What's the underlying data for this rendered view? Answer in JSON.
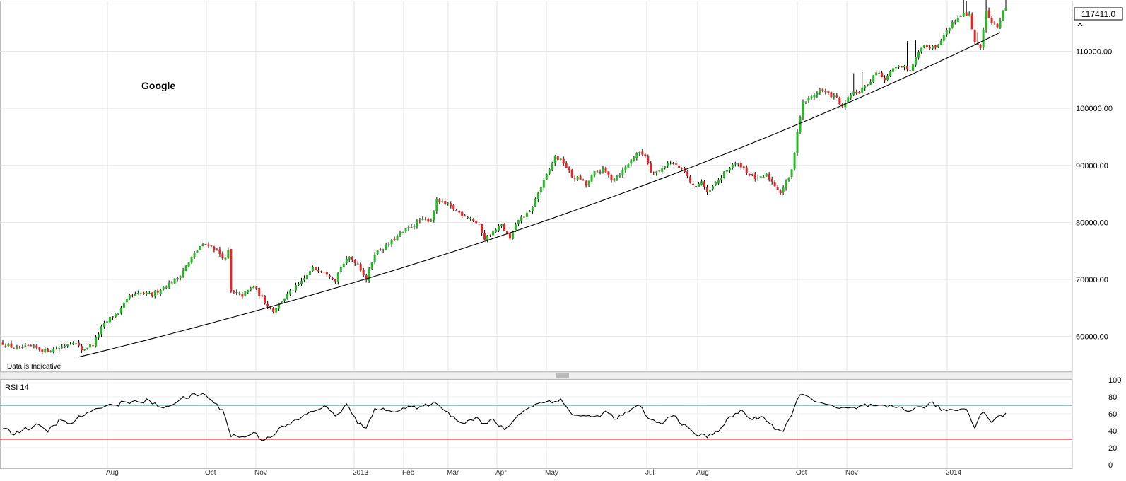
{
  "chart_data": [
    {
      "type": "candlestick",
      "title": "Google",
      "watermark": "Data is Indicative",
      "last_price_label": "117411.0",
      "y_ticks": [
        60000,
        70000,
        80000,
        90000,
        100000,
        110000
      ],
      "y_tick_labels": [
        "60000.00",
        "70000.00",
        "80000.00",
        "90000.00",
        "100000.00",
        "110000.00"
      ],
      "ylim": [
        54000,
        118500
      ],
      "x_ticks": [
        "Aug",
        "Oct",
        "Nov",
        "2013",
        "Feb",
        "Mar",
        "Apr",
        "May",
        "Jul",
        "Aug",
        "Oct",
        "Nov",
        "2014"
      ],
      "price_anchors": [
        [
          0,
          58800
        ],
        [
          5,
          57800
        ],
        [
          10,
          58200
        ],
        [
          15,
          57500
        ],
        [
          20,
          58000
        ],
        [
          25,
          59200
        ],
        [
          28,
          57700
        ],
        [
          32,
          58600
        ],
        [
          35,
          61500
        ],
        [
          38,
          63200
        ],
        [
          41,
          64200
        ],
        [
          45,
          67000
        ],
        [
          49,
          67500
        ],
        [
          53,
          67300
        ],
        [
          58,
          69000
        ],
        [
          62,
          70200
        ],
        [
          66,
          73000
        ],
        [
          70,
          75800
        ],
        [
          73,
          76200
        ],
        [
          76,
          75000
        ],
        [
          79,
          73500
        ],
        [
          80,
          75000
        ],
        [
          81,
          67700
        ],
        [
          85,
          67200
        ],
        [
          89,
          68800
        ],
        [
          93,
          66000
        ],
        [
          96,
          64500
        ],
        [
          99,
          66300
        ],
        [
          102,
          67800
        ],
        [
          106,
          69500
        ],
        [
          110,
          72000
        ],
        [
          114,
          71500
        ],
        [
          118,
          70000
        ],
        [
          120,
          72300
        ],
        [
          123,
          73800
        ],
        [
          126,
          72800
        ],
        [
          129,
          70000
        ],
        [
          132,
          74700
        ],
        [
          136,
          75800
        ],
        [
          140,
          77500
        ],
        [
          144,
          79000
        ],
        [
          148,
          80300
        ],
        [
          152,
          80500
        ],
        [
          154,
          83800
        ],
        [
          158,
          83000
        ],
        [
          162,
          81700
        ],
        [
          166,
          80800
        ],
        [
          169,
          79400
        ],
        [
          171,
          77200
        ],
        [
          174,
          78300
        ],
        [
          177,
          79500
        ],
        [
          180,
          77000
        ],
        [
          183,
          80500
        ],
        [
          187,
          81700
        ],
        [
          190,
          85200
        ],
        [
          193,
          88200
        ],
        [
          196,
          91500
        ],
        [
          199,
          90500
        ],
        [
          202,
          88000
        ],
        [
          205,
          87600
        ],
        [
          207,
          86500
        ],
        [
          210,
          88700
        ],
        [
          213,
          89300
        ],
        [
          216,
          87600
        ],
        [
          219,
          88500
        ],
        [
          222,
          90300
        ],
        [
          225,
          92200
        ],
        [
          228,
          91800
        ],
        [
          230,
          89000
        ],
        [
          233,
          88900
        ],
        [
          236,
          90600
        ],
        [
          239,
          90000
        ],
        [
          242,
          88800
        ],
        [
          245,
          86200
        ],
        [
          248,
          87200
        ],
        [
          250,
          85000
        ],
        [
          253,
          86800
        ],
        [
          256,
          88600
        ],
        [
          259,
          90200
        ],
        [
          262,
          90000
        ],
        [
          265,
          88400
        ],
        [
          268,
          87500
        ],
        [
          271,
          88300
        ],
        [
          274,
          86500
        ],
        [
          276,
          85300
        ],
        [
          278,
          87000
        ],
        [
          280,
          89000
        ],
        [
          282,
          96000
        ],
        [
          284,
          101000
        ],
        [
          287,
          102000
        ],
        [
          290,
          103200
        ],
        [
          293,
          102500
        ],
        [
          296,
          101800
        ],
        [
          298,
          100000
        ],
        [
          301,
          102500
        ],
        [
          304,
          103000
        ],
        [
          307,
          104000
        ],
        [
          310,
          106500
        ],
        [
          313,
          105000
        ],
        [
          316,
          106800
        ],
        [
          319,
          107500
        ],
        [
          322,
          106800
        ],
        [
          325,
          110200
        ],
        [
          328,
          111000
        ],
        [
          331,
          110500
        ],
        [
          334,
          112800
        ],
        [
          337,
          115000
        ],
        [
          340,
          116400
        ],
        [
          343,
          116500
        ],
        [
          345,
          111500
        ],
        [
          347,
          110500
        ],
        [
          349,
          117000
        ],
        [
          351,
          115000
        ],
        [
          353,
          114500
        ],
        [
          355,
          116800
        ],
        [
          356,
          117411
        ]
      ],
      "trendline": {
        "start": [
          27,
          56400
        ],
        "end": [
          354,
          113300
        ],
        "curve": "exponential"
      }
    },
    {
      "type": "line",
      "label": "RSI 14",
      "ylim": [
        0,
        100
      ],
      "y_ticks": [
        0,
        20,
        40,
        60,
        80,
        100
      ],
      "y_tick_labels": [
        "0",
        "20",
        "40",
        "60",
        "80",
        "100"
      ],
      "reference_lines": [
        {
          "value": 70,
          "color": "#4a9b9a"
        },
        {
          "value": 30,
          "color": "#e03030"
        }
      ],
      "anchors": [
        [
          0,
          44
        ],
        [
          4,
          37
        ],
        [
          8,
          42
        ],
        [
          12,
          46
        ],
        [
          16,
          40
        ],
        [
          20,
          52
        ],
        [
          24,
          48
        ],
        [
          28,
          58
        ],
        [
          32,
          62
        ],
        [
          36,
          71
        ],
        [
          40,
          70
        ],
        [
          44,
          75
        ],
        [
          48,
          73
        ],
        [
          52,
          76
        ],
        [
          56,
          66
        ],
        [
          60,
          72
        ],
        [
          64,
          78
        ],
        [
          68,
          82
        ],
        [
          72,
          83
        ],
        [
          75,
          72
        ],
        [
          78,
          65
        ],
        [
          81,
          35
        ],
        [
          85,
          32
        ],
        [
          89,
          38
        ],
        [
          92,
          30
        ],
        [
          95,
          33
        ],
        [
          98,
          42
        ],
        [
          102,
          48
        ],
        [
          106,
          56
        ],
        [
          110,
          63
        ],
        [
          114,
          69
        ],
        [
          118,
          58
        ],
        [
          122,
          70
        ],
        [
          126,
          50
        ],
        [
          129,
          41
        ],
        [
          132,
          68
        ],
        [
          136,
          63
        ],
        [
          140,
          65
        ],
        [
          144,
          68
        ],
        [
          148,
          66
        ],
        [
          152,
          73
        ],
        [
          156,
          68
        ],
        [
          160,
          55
        ],
        [
          164,
          50
        ],
        [
          168,
          56
        ],
        [
          171,
          47
        ],
        [
          174,
          53
        ],
        [
          178,
          41
        ],
        [
          182,
          55
        ],
        [
          186,
          67
        ],
        [
          190,
          72
        ],
        [
          194,
          75
        ],
        [
          198,
          76
        ],
        [
          202,
          60
        ],
        [
          206,
          57
        ],
        [
          210,
          56
        ],
        [
          214,
          62
        ],
        [
          218,
          54
        ],
        [
          222,
          63
        ],
        [
          226,
          69
        ],
        [
          230,
          52
        ],
        [
          234,
          48
        ],
        [
          238,
          60
        ],
        [
          242,
          45
        ],
        [
          246,
          36
        ],
        [
          250,
          33
        ],
        [
          254,
          41
        ],
        [
          258,
          55
        ],
        [
          262,
          64
        ],
        [
          266,
          53
        ],
        [
          270,
          57
        ],
        [
          274,
          43
        ],
        [
          277,
          39
        ],
        [
          280,
          58
        ],
        [
          283,
          85
        ],
        [
          286,
          78
        ],
        [
          290,
          75
        ],
        [
          294,
          68
        ],
        [
          298,
          66
        ],
        [
          302,
          66
        ],
        [
          306,
          70
        ],
        [
          310,
          68
        ],
        [
          314,
          68
        ],
        [
          318,
          68
        ],
        [
          322,
          64
        ],
        [
          326,
          68
        ],
        [
          330,
          72
        ],
        [
          334,
          64
        ],
        [
          338,
          65
        ],
        [
          342,
          66
        ],
        [
          345,
          45
        ],
        [
          348,
          64
        ],
        [
          351,
          50
        ],
        [
          354,
          58
        ],
        [
          356,
          60
        ]
      ]
    }
  ]
}
